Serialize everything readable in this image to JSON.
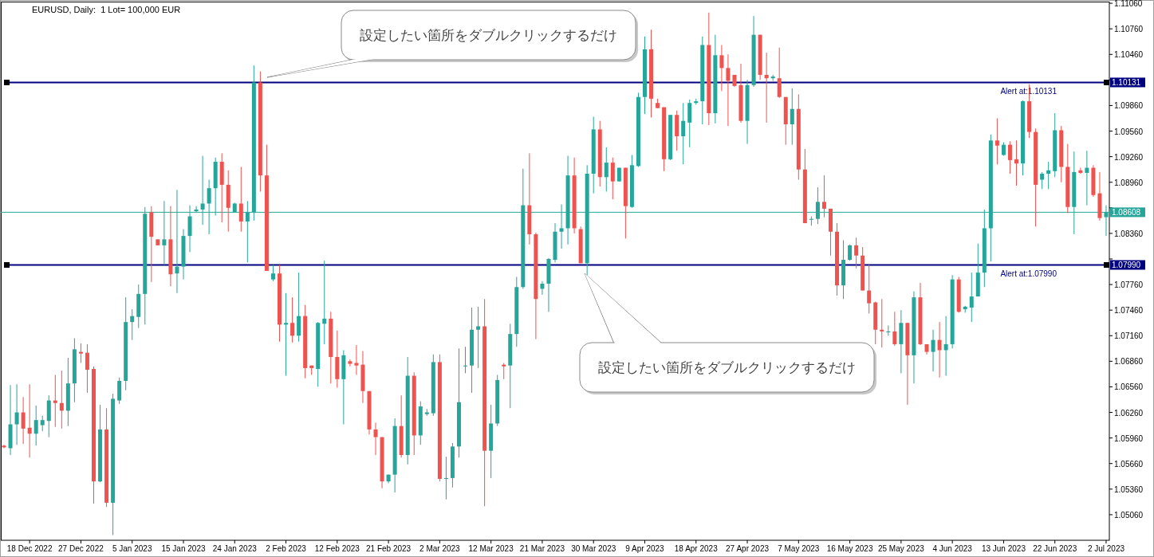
{
  "chart_data": {
    "type": "candlestick",
    "title": "EURUSD, Daily:  1 Lot= 100,000 EUR",
    "categories": [
      null,
      null,
      null,
      null,
      "18 Dec 2022",
      null,
      null,
      null,
      null,
      null,
      null,
      null,
      "27 Dec 2022",
      null,
      null,
      null,
      null,
      null,
      null,
      null,
      "5 Jan 2023",
      null,
      null,
      null,
      null,
      null,
      null,
      null,
      "15 Jan 2023",
      null,
      null,
      null,
      null,
      null,
      null,
      null,
      "24 Jan 2023",
      null,
      null,
      null,
      null,
      null,
      null,
      null,
      "2 Feb 2023",
      null,
      null,
      null,
      null,
      null,
      null,
      null,
      "12 Feb 2023",
      null,
      null,
      null,
      null,
      null,
      null,
      null,
      "21 Feb 2023",
      null,
      null,
      null,
      null,
      null,
      null,
      null,
      "2 Mar 2023",
      null,
      null,
      null,
      null,
      null,
      null,
      null,
      "12 Mar 2023",
      null,
      null,
      null,
      null,
      null,
      null,
      null,
      "21 Mar 2023",
      null,
      null,
      null,
      null,
      null,
      null,
      null,
      "30 Mar 2023",
      null,
      null,
      null,
      null,
      null,
      null,
      null,
      "9 Apr 2023",
      null,
      null,
      null,
      null,
      null,
      null,
      null,
      "18 Apr 2023",
      null,
      null,
      null,
      null,
      null,
      null,
      null,
      "27 Apr 2023",
      null,
      null,
      null,
      null,
      null,
      null,
      null,
      "7 May 2023",
      null,
      null,
      null,
      null,
      null,
      null,
      null,
      "16 May 2023",
      null,
      null,
      null,
      null,
      null,
      null,
      null,
      "25 May 2023",
      null,
      null,
      null,
      null,
      null,
      null,
      null,
      "4 Jun 2023",
      null,
      null,
      null,
      null,
      null,
      null,
      null,
      "13 Jun 2023",
      null,
      null,
      null,
      null,
      null,
      null,
      null,
      "22 Jun 2023",
      null,
      null,
      null,
      null,
      null,
      null,
      null,
      "2 Jul 2023"
    ],
    "ohlc": [
      [
        1.0587,
        1.0588,
        1.0584,
        1.0585
      ],
      [
        1.0584,
        1.0658,
        1.0576,
        1.0612
      ],
      [
        1.0612,
        1.0659,
        1.0588,
        1.0626
      ],
      [
        1.0626,
        1.0644,
        1.0589,
        1.0607
      ],
      [
        1.0608,
        1.0659,
        1.0573,
        1.0601
      ],
      [
        1.0601,
        1.0634,
        1.0587,
        1.0617
      ],
      [
        1.0611,
        1.0622,
        1.0604,
        1.0617
      ],
      [
        1.0616,
        1.0646,
        1.0597,
        1.064
      ],
      [
        1.064,
        1.067,
        1.0609,
        1.0637
      ],
      [
        1.0637,
        1.0675,
        1.0607,
        1.0628
      ],
      [
        1.0628,
        1.069,
        1.061,
        1.066
      ],
      [
        1.066,
        1.0713,
        1.0638,
        1.07
      ],
      [
        1.0697,
        1.0707,
        1.0684,
        1.0695
      ],
      [
        1.0696,
        1.0706,
        1.0649,
        1.0676
      ],
      [
        1.0677,
        1.068,
        1.0519,
        1.0545
      ],
      [
        1.0545,
        1.0635,
        1.0544,
        1.0606
      ],
      [
        1.0606,
        1.0631,
        1.0515,
        1.052
      ],
      [
        1.052,
        1.0648,
        1.0482,
        1.0642
      ],
      [
        1.064,
        1.0667,
        1.0636,
        1.0663
      ],
      [
        1.0663,
        1.0761,
        1.0652,
        1.0732
      ],
      [
        1.0732,
        1.0747,
        1.0711,
        1.0739
      ],
      [
        1.0738,
        1.0776,
        1.0725,
        1.0765
      ],
      [
        1.0765,
        1.0867,
        1.0729,
        1.0859
      ],
      [
        1.0861,
        1.0868,
        1.0779,
        1.0832
      ],
      [
        1.0829,
        1.0829,
        1.0822,
        1.0822
      ],
      [
        1.0822,
        1.0874,
        1.0799,
        1.0829
      ],
      [
        1.0829,
        1.0868,
        1.0774,
        1.0788
      ],
      [
        1.0789,
        1.0887,
        1.0766,
        1.0797
      ],
      [
        1.0797,
        1.0841,
        1.0782,
        1.0833
      ],
      [
        1.0833,
        1.0869,
        1.0814,
        1.0856
      ],
      [
        1.0862,
        1.0868,
        1.0861,
        1.0864
      ],
      [
        1.0864,
        1.0927,
        1.0846,
        1.0871
      ],
      [
        1.0871,
        1.0899,
        1.0835,
        1.0889
      ],
      [
        1.0889,
        1.0925,
        1.0857,
        1.092
      ],
      [
        1.092,
        1.093,
        1.0849,
        1.0893
      ],
      [
        1.0893,
        1.091,
        1.0838,
        1.0866
      ],
      [
        1.0861,
        1.0872,
        1.0861,
        1.0871
      ],
      [
        1.0871,
        1.0914,
        1.0838,
        1.085
      ],
      [
        1.085,
        1.0874,
        1.0802,
        1.0861
      ],
      [
        1.0861,
        1.1033,
        1.0851,
        1.1013
      ],
      [
        1.1013,
        1.1026,
        1.0885,
        1.0904
      ],
      [
        1.0904,
        1.094,
        1.0792,
        1.0792
      ],
      [
        1.0782,
        1.0799,
        1.078,
        1.0789
      ],
      [
        1.0789,
        1.0799,
        1.0709,
        1.0729
      ],
      [
        1.0729,
        1.0766,
        1.0669,
        1.0731
      ],
      [
        1.0731,
        1.0761,
        1.0708,
        1.0716
      ],
      [
        1.0716,
        1.079,
        1.0709,
        1.0739
      ],
      [
        1.0739,
        1.0752,
        1.0666,
        1.0678
      ],
      [
        1.0681,
        1.0681,
        1.067,
        1.0678
      ],
      [
        1.0677,
        1.0732,
        1.0656,
        1.0731
      ],
      [
        1.073,
        1.0804,
        1.0706,
        1.0736
      ],
      [
        1.0736,
        1.0744,
        1.066,
        1.0691
      ],
      [
        1.0691,
        1.0722,
        1.0655,
        1.0665
      ],
      [
        1.0665,
        1.0699,
        1.0612,
        1.0693
      ],
      [
        1.0686,
        1.0688,
        1.068,
        1.0683
      ],
      [
        1.0684,
        1.0705,
        1.067,
        1.0681
      ],
      [
        1.0682,
        1.0698,
        1.0637,
        1.0651
      ],
      [
        1.0651,
        1.0651,
        1.06,
        1.0606
      ],
      [
        1.0606,
        1.0614,
        1.0576,
        1.0597
      ],
      [
        1.0597,
        1.0597,
        1.0537,
        1.0545
      ],
      [
        1.0545,
        1.0553,
        1.0543,
        1.0553
      ],
      [
        1.0553,
        1.0619,
        1.0532,
        1.061
      ],
      [
        1.061,
        1.0646,
        1.0573,
        1.0576
      ],
      [
        1.0576,
        1.0691,
        1.0565,
        1.0669
      ],
      [
        1.0669,
        1.0673,
        1.0576,
        1.0599
      ],
      [
        1.0599,
        1.0639,
        1.0588,
        1.0633
      ],
      [
        1.0624,
        1.063,
        1.0622,
        1.0626
      ],
      [
        1.0625,
        1.0694,
        1.0622,
        1.0685
      ],
      [
        1.0685,
        1.0694,
        1.0545,
        1.0548
      ],
      [
        1.0548,
        1.0574,
        1.0524,
        1.0549
      ],
      [
        1.0549,
        1.059,
        1.0538,
        1.0586
      ],
      [
        1.0586,
        1.0701,
        1.0573,
        1.0638
      ],
      [
        1.068,
        1.0703,
        1.0672,
        1.0681
      ],
      [
        1.0681,
        1.0749,
        1.0649,
        1.0723
      ],
      [
        1.0723,
        1.075,
        1.0678,
        1.0727
      ],
      [
        1.0727,
        1.0759,
        1.0516,
        1.0581
      ],
      [
        1.0581,
        1.0635,
        1.0549,
        1.0613
      ],
      [
        1.0613,
        1.067,
        1.061,
        1.0664
      ],
      [
        1.0682,
        1.0684,
        1.0665,
        1.068
      ],
      [
        1.0681,
        1.073,
        1.0631,
        1.0718
      ],
      [
        1.0718,
        1.0785,
        1.0703,
        1.0773
      ],
      [
        1.0773,
        1.0912,
        1.0771,
        1.0869
      ],
      [
        1.0869,
        1.093,
        1.0823,
        1.0835
      ],
      [
        1.0835,
        1.0837,
        1.0712,
        1.0759
      ],
      [
        1.0771,
        1.078,
        1.0764,
        1.0777
      ],
      [
        1.0777,
        1.0807,
        1.0744,
        1.0806
      ],
      [
        1.0805,
        1.0848,
        1.0802,
        1.0838
      ],
      [
        1.0838,
        1.087,
        1.0818,
        1.0842
      ],
      [
        1.0842,
        1.0927,
        1.0823,
        1.0904
      ],
      [
        1.0904,
        1.0925,
        1.0836,
        1.0842
      ],
      [
        1.0841,
        1.0844,
        1.0801,
        1.0801
      ],
      [
        1.0801,
        1.0916,
        1.0787,
        1.0906
      ],
      [
        1.0906,
        1.0973,
        1.0883,
        1.0958
      ],
      [
        1.0958,
        1.0968,
        1.0891,
        1.0902
      ],
      [
        1.0902,
        1.0937,
        1.0885,
        1.0919
      ],
      [
        1.0919,
        1.0925,
        1.0876,
        1.0897
      ],
      [
        1.0897,
        1.0913,
        1.0897,
        1.0913
      ],
      [
        1.0913,
        1.0913,
        1.083,
        1.0868
      ],
      [
        1.0867,
        1.0928,
        1.0866,
        1.0916
      ],
      [
        1.0915,
        1.1001,
        1.0914,
        1.0996
      ],
      [
        1.0996,
        1.1067,
        1.0976,
        1.1052
      ],
      [
        1.1052,
        1.1075,
        1.0972,
        1.0994
      ],
      [
        1.0989,
        1.0994,
        1.0983,
        1.0983
      ],
      [
        1.0984,
        1.0984,
        1.0909,
        1.0923
      ],
      [
        1.0923,
        1.0975,
        1.0922,
        1.0975
      ],
      [
        1.0975,
        1.098,
        1.0933,
        1.095
      ],
      [
        1.095,
        1.0989,
        1.0917,
        1.0968
      ],
      [
        1.0966,
        1.0993,
        1.0937,
        1.0989
      ],
      [
        1.0989,
        1.0994,
        1.0987,
        1.0991
      ],
      [
        1.0991,
        1.1067,
        1.0964,
        1.1057
      ],
      [
        1.1057,
        1.1095,
        1.0963,
        1.0977
      ],
      [
        1.0977,
        1.1069,
        1.0965,
        1.1045
      ],
      [
        1.1045,
        1.1057,
        1.1003,
        1.103
      ],
      [
        1.103,
        1.1046,
        1.0962,
        1.1015
      ],
      [
        1.1022,
        1.1022,
        1.1008,
        1.1009
      ],
      [
        1.101,
        1.1035,
        1.0966,
        1.0968
      ],
      [
        1.0968,
        1.1016,
        1.0941,
        1.101
      ],
      [
        1.101,
        1.1091,
        1.1008,
        1.1069
      ],
      [
        1.1069,
        1.1069,
        1.1016,
        1.1022
      ],
      [
        1.1022,
        1.1048,
        1.0966,
        1.1018
      ],
      [
        1.1018,
        1.1022,
        1.1015,
        1.102
      ],
      [
        1.1018,
        1.1054,
        1.0995,
        1.0996
      ],
      [
        1.0996,
        1.0996,
        1.094,
        1.0964
      ],
      [
        1.0964,
        1.1006,
        1.094,
        1.0982
      ],
      [
        1.0982,
        1.0999,
        1.0899,
        1.0911
      ],
      [
        1.0911,
        1.0935,
        1.0848,
        1.0848
      ],
      [
        1.0852,
        1.0856,
        1.0845,
        1.0853
      ],
      [
        1.0853,
        1.089,
        1.0847,
        1.0873
      ],
      [
        1.0873,
        1.0904,
        1.0855,
        1.0865
      ],
      [
        1.0865,
        1.0865,
        1.081,
        1.0838
      ],
      [
        1.0838,
        1.0848,
        1.0763,
        1.0775
      ],
      [
        1.0775,
        1.0828,
        1.0759,
        1.0805
      ],
      [
        1.0805,
        1.0823,
        1.0804,
        1.0822
      ],
      [
        1.0822,
        1.0831,
        1.0795,
        1.081
      ],
      [
        1.081,
        1.082,
        1.0769,
        1.0769
      ],
      [
        1.0769,
        1.08,
        1.0742,
        1.0754
      ],
      [
        1.0755,
        1.0756,
        1.0706,
        1.0723
      ],
      [
        1.0723,
        1.0759,
        1.0702,
        1.0721
      ],
      [
        1.072,
        1.0728,
        1.0716,
        1.0721
      ],
      [
        1.0721,
        1.0744,
        1.0704,
        1.0706
      ],
      [
        1.0706,
        1.0746,
        1.0672,
        1.0731
      ],
      [
        1.0731,
        1.0731,
        1.0635,
        1.0693
      ],
      [
        1.0693,
        1.0768,
        1.066,
        1.0761
      ],
      [
        1.0761,
        1.0778,
        1.0705,
        1.0706
      ],
      [
        1.0706,
        1.0706,
        1.0694,
        1.0697
      ],
      [
        1.0697,
        1.0723,
        1.0674,
        1.0711
      ],
      [
        1.0711,
        1.0732,
        1.0667,
        1.0699
      ],
      [
        1.0699,
        1.0739,
        1.0669,
        1.0706
      ],
      [
        1.0706,
        1.0787,
        1.0701,
        1.0782
      ],
      [
        1.0782,
        1.0785,
        1.0743,
        1.0744
      ],
      [
        1.0747,
        1.0751,
        1.0743,
        1.075
      ],
      [
        1.0749,
        1.079,
        1.0732,
        1.0762
      ],
      [
        1.0762,
        1.0824,
        1.0762,
        1.079
      ],
      [
        1.079,
        1.0864,
        1.0773,
        1.0842
      ],
      [
        1.0842,
        1.0952,
        1.0803,
        1.0945
      ],
      [
        1.0945,
        1.0971,
        1.0917,
        1.0939
      ],
      [
        1.0928,
        1.0943,
        1.0927,
        1.094
      ],
      [
        1.094,
        1.0944,
        1.0906,
        1.0922
      ],
      [
        1.0923,
        1.0945,
        1.0892,
        1.0918
      ],
      [
        1.0918,
        1.0992,
        1.0904,
        1.0991
      ],
      [
        1.0991,
        1.1011,
        1.0948,
        1.0955
      ],
      [
        1.0955,
        1.0959,
        1.0844,
        1.0893
      ],
      [
        1.0899,
        1.0908,
        1.0888,
        1.0906
      ],
      [
        1.0906,
        1.092,
        1.0888,
        1.091
      ],
      [
        1.0909,
        1.0977,
        1.0902,
        1.0957
      ],
      [
        1.0957,
        1.0962,
        1.0896,
        1.0914
      ],
      [
        1.0914,
        1.0941,
        1.086,
        1.0867
      ],
      [
        1.0867,
        1.0932,
        1.0835,
        1.0908
      ],
      [
        1.091,
        1.0913,
        1.0906,
        1.0907
      ],
      [
        1.0907,
        1.0933,
        1.0869,
        1.0913
      ],
      [
        1.0913,
        1.0916,
        1.0879,
        1.0881
      ],
      [
        1.0883,
        1.0908,
        1.0851,
        1.0854
      ],
      [
        1.0855,
        1.0869,
        1.0833,
        1.0861
      ]
    ],
    "colors": [
      "#ef5350",
      "#26a69a",
      "#26a69a",
      "#ef5350",
      "#ef5350",
      "#26a69a",
      "#26a69a",
      "#26a69a",
      "#ef5350",
      "#ef5350",
      "#26a69a",
      "#26a69a",
      "#ef5350",
      "#ef5350",
      "#ef5350",
      "#26a69a",
      "#ef5350",
      "#26a69a",
      "#26a69a",
      "#26a69a",
      "#26a69a",
      "#26a69a",
      "#26a69a",
      "#ef5350",
      "#ef5350",
      "#26a69a",
      "#ef5350",
      "#26a69a",
      "#26a69a",
      "#26a69a",
      "#26a69a",
      "#26a69a",
      "#26a69a",
      "#26a69a",
      "#ef5350",
      "#ef5350",
      "#26a69a",
      "#ef5350",
      "#26a69a",
      "#26a69a",
      "#ef5350",
      "#ef5350",
      "#26a69a",
      "#ef5350",
      "#26a69a",
      "#ef5350",
      "#26a69a",
      "#ef5350",
      "#ef5350",
      "#26a69a",
      "#26a69a",
      "#ef5350",
      "#ef5350",
      "#26a69a",
      "#ef5350",
      "#ef5350",
      "#ef5350",
      "#ef5350",
      "#ef5350",
      "#ef5350",
      "#26a69a",
      "#26a69a",
      "#ef5350",
      "#26a69a",
      "#ef5350",
      "#26a69a",
      "#26a69a",
      "#26a69a",
      "#ef5350",
      "#26a69a",
      "#26a69a",
      "#26a69a",
      "#26a69a",
      "#26a69a",
      "#26a69a",
      "#ef5350",
      "#26a69a",
      "#26a69a",
      "#ef5350",
      "#26a69a",
      "#26a69a",
      "#26a69a",
      "#ef5350",
      "#ef5350",
      "#26a69a",
      "#26a69a",
      "#26a69a",
      "#26a69a",
      "#26a69a",
      "#ef5350",
      "#ef5350",
      "#26a69a",
      "#26a69a",
      "#ef5350",
      "#26a69a",
      "#ef5350",
      "#26a69a",
      "#ef5350",
      "#26a69a",
      "#26a69a",
      "#26a69a",
      "#ef5350",
      "#ef5350",
      "#ef5350",
      "#26a69a",
      "#ef5350",
      "#26a69a",
      "#26a69a",
      "#26a69a",
      "#26a69a",
      "#ef5350",
      "#26a69a",
      "#ef5350",
      "#ef5350",
      "#ef5350",
      "#ef5350",
      "#26a69a",
      "#26a69a",
      "#ef5350",
      "#ef5350",
      "#26a69a",
      "#ef5350",
      "#ef5350",
      "#26a69a",
      "#ef5350",
      "#ef5350",
      "#26a69a",
      "#26a69a",
      "#ef5350",
      "#ef5350",
      "#ef5350",
      "#26a69a",
      "#26a69a",
      "#ef5350",
      "#ef5350",
      "#ef5350",
      "#ef5350",
      "#ef5350",
      "#26a69a",
      "#ef5350",
      "#26a69a",
      "#ef5350",
      "#26a69a",
      "#ef5350",
      "#ef5350",
      "#26a69a",
      "#ef5350",
      "#26a69a",
      "#26a69a",
      "#ef5350",
      "#26a69a",
      "#26a69a",
      "#26a69a",
      "#26a69a",
      "#26a69a",
      "#ef5350",
      "#26a69a",
      "#ef5350",
      "#ef5350",
      "#26a69a",
      "#ef5350",
      "#ef5350",
      "#26a69a",
      "#26a69a",
      "#26a69a",
      "#ef5350",
      "#ef5350",
      "#26a69a",
      "#ef5350",
      "#26a69a",
      "#ef5350",
      "#ef5350",
      "#26a69a"
    ],
    "ylim": [
      1.0476,
      1.1107
    ],
    "yticks": [
      {
        "value": 1.1106,
        "label": "1.11060"
      },
      {
        "value": 1.1076,
        "label": "1.10760"
      },
      {
        "value": 1.1046,
        "label": "1.10460"
      },
      {
        "value": 1.1016,
        "label": null
      },
      {
        "value": 1.10131,
        "label": "1.10131"
      },
      {
        "value": 1.0986,
        "label": "1.09860"
      },
      {
        "value": 1.0956,
        "label": "1.09560"
      },
      {
        "value": 1.0926,
        "label": "1.09260"
      },
      {
        "value": 1.0896,
        "label": "1.08960"
      },
      {
        "value": 1.0866,
        "label": null
      },
      {
        "value": 1.08608,
        "label": "1.08608"
      },
      {
        "value": 1.0836,
        "label": "1.08360"
      },
      {
        "value": 1.0806,
        "label": null
      },
      {
        "value": 1.0799,
        "label": "1.07990"
      },
      {
        "value": 1.0776,
        "label": "1.07760"
      },
      {
        "value": 1.0746,
        "label": "1.07460"
      },
      {
        "value": 1.0716,
        "label": "1.07160"
      },
      {
        "value": 1.0686,
        "label": "1.06860"
      },
      {
        "value": 1.0656,
        "label": "1.06560"
      },
      {
        "value": 1.0626,
        "label": "1.06260"
      },
      {
        "value": 1.0596,
        "label": "1.05960"
      },
      {
        "value": 1.0566,
        "label": "1.05660"
      },
      {
        "value": 1.0536,
        "label": "1.05360"
      },
      {
        "value": 1.0506,
        "label": "1.05060"
      }
    ],
    "ref_lines": [
      {
        "axis": "y",
        "value": 1.10131,
        "label": "Alert at:1.10131",
        "color": "#000080"
      },
      {
        "axis": "y",
        "value": 1.0799,
        "label": "Alert at:1.07990",
        "color": "#000080"
      },
      {
        "axis": "y",
        "value": 1.08608,
        "color": "#26a69a"
      }
    ],
    "annotations": [
      "設定したい箇所をダブルクリックするだけ",
      "設定したい箇所をダブルクリックするだけ"
    ]
  }
}
